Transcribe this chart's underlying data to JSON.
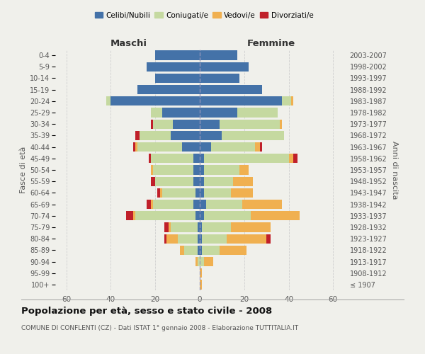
{
  "age_groups": [
    "100+",
    "95-99",
    "90-94",
    "85-89",
    "80-84",
    "75-79",
    "70-74",
    "65-69",
    "60-64",
    "55-59",
    "50-54",
    "45-49",
    "40-44",
    "35-39",
    "30-34",
    "25-29",
    "20-24",
    "15-19",
    "10-14",
    "5-9",
    "0-4"
  ],
  "birth_years": [
    "≤ 1907",
    "1908-1912",
    "1913-1917",
    "1918-1922",
    "1923-1927",
    "1928-1932",
    "1933-1937",
    "1938-1942",
    "1943-1947",
    "1948-1952",
    "1953-1957",
    "1958-1962",
    "1963-1967",
    "1968-1972",
    "1973-1977",
    "1978-1982",
    "1983-1987",
    "1988-1992",
    "1993-1997",
    "1998-2002",
    "2003-2007"
  ],
  "colors": {
    "celibi": "#4472a8",
    "coniugati": "#c5d9a0",
    "vedovi": "#f0b050",
    "divorziati": "#c0202a"
  },
  "maschi": {
    "celibi": [
      0,
      0,
      0,
      1,
      1,
      1,
      2,
      3,
      2,
      3,
      3,
      3,
      8,
      13,
      12,
      17,
      40,
      28,
      20,
      24,
      20
    ],
    "coniugati": [
      0,
      0,
      1,
      6,
      9,
      12,
      27,
      18,
      15,
      17,
      18,
      19,
      20,
      14,
      9,
      5,
      2,
      0,
      0,
      0,
      0
    ],
    "vedovi": [
      0,
      0,
      1,
      2,
      5,
      1,
      1,
      1,
      1,
      0,
      1,
      0,
      1,
      0,
      0,
      0,
      0,
      0,
      0,
      0,
      0
    ],
    "divorziati": [
      0,
      0,
      0,
      0,
      1,
      2,
      3,
      2,
      1,
      2,
      0,
      1,
      1,
      2,
      1,
      0,
      0,
      0,
      0,
      0,
      0
    ]
  },
  "femmine": {
    "celibi": [
      0,
      0,
      0,
      1,
      1,
      1,
      2,
      3,
      2,
      2,
      2,
      2,
      5,
      10,
      9,
      17,
      37,
      28,
      18,
      22,
      17
    ],
    "coniugati": [
      0,
      0,
      2,
      8,
      11,
      13,
      21,
      16,
      12,
      13,
      16,
      38,
      20,
      28,
      27,
      18,
      4,
      0,
      0,
      0,
      0
    ],
    "vedovi": [
      1,
      1,
      4,
      12,
      18,
      18,
      22,
      18,
      10,
      9,
      4,
      2,
      2,
      0,
      1,
      0,
      1,
      0,
      0,
      0,
      0
    ],
    "divorziati": [
      0,
      0,
      0,
      0,
      2,
      0,
      0,
      0,
      0,
      0,
      0,
      2,
      1,
      0,
      0,
      0,
      0,
      0,
      0,
      0,
      0
    ]
  },
  "xlim": 65,
  "title": "Popolazione per età, sesso e stato civile - 2008",
  "subtitle": "COMUNE DI CONFLENTI (CZ) - Dati ISTAT 1° gennaio 2008 - Elaborazione TUTTITALIA.IT",
  "xlabel_left": "Maschi",
  "xlabel_right": "Femmine",
  "ylabel_left": "Fasce di età",
  "ylabel_right": "Anni di nascita",
  "bg_color": "#f0f0eb",
  "grid_color": "#cccccc"
}
